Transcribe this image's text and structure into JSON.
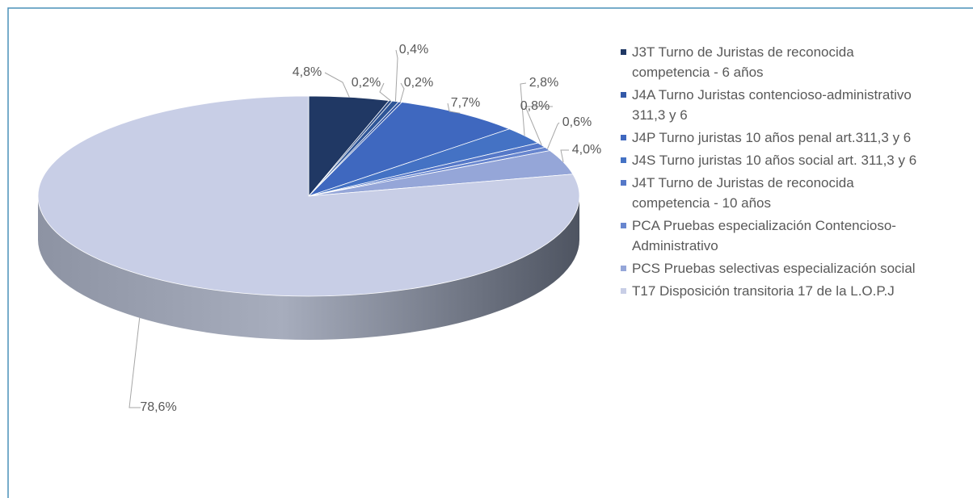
{
  "chart_data": {
    "type": "pie",
    "categories": [
      "J3T Turno de Juristas de reconocida competencia - 6 años",
      null,
      null,
      "J4A Turno Juristas contencioso-administrativo 311,3 y 6",
      "J4P Turno juristas 10 años penal art.311,3 y 6",
      "J4S Turno juristas 10 años social art. 311,3 y 6",
      "J4T Turno de Juristas de reconocida competencia - 10 años",
      "PCA Pruebas especialización Contencioso-Administrativo",
      "PCS Pruebas selectivas especialización social",
      "T17 Disposición transitoria 17 de la L.O.P.J"
    ],
    "values": [
      4.8,
      0.2,
      0.4,
      0.2,
      7.7,
      2.8,
      0.8,
      0.6,
      4.0,
      78.6
    ],
    "value_labels": [
      "4,8%",
      "0,2%",
      "0,4%",
      "0,2%",
      "7,7%",
      "2,8%",
      "0,8%",
      "0,6%",
      "4,0%",
      "78,6%"
    ],
    "colors": [
      "#203864",
      "#2a4a85",
      "#2e5597",
      "#3359a8",
      "#3f68bf",
      "#4472c4",
      "#5578c8",
      "#6886cf",
      "#95a6d8",
      "#c8cee6"
    ],
    "legend": "right"
  }
}
